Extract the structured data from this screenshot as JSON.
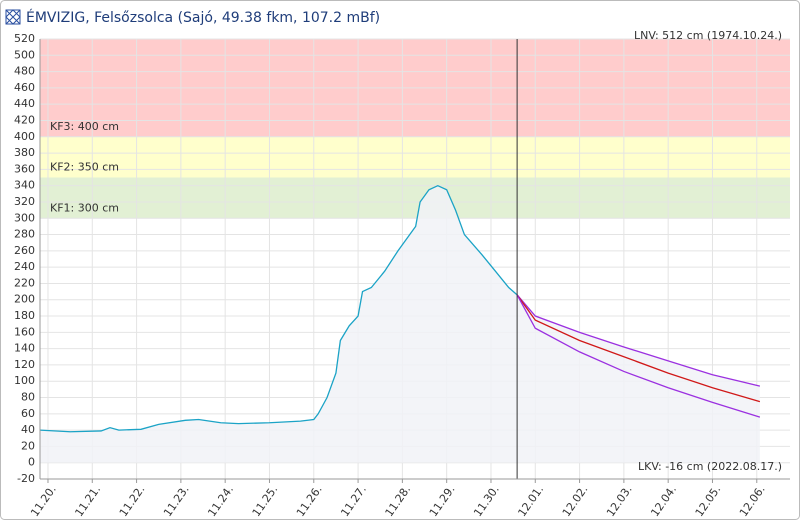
{
  "chart_data": {
    "type": "line",
    "title": "ÉMVIZIG, Felsőzsolca (Sajó, 49.38 fkm, 107.2 mBf)",
    "ylim": [
      -20,
      520
    ],
    "yticks": [
      -20,
      0,
      20,
      40,
      60,
      80,
      100,
      120,
      140,
      160,
      180,
      200,
      220,
      240,
      260,
      280,
      300,
      320,
      340,
      360,
      380,
      400,
      420,
      440,
      460,
      480,
      500,
      520
    ],
    "xlim": [
      -0.18,
      16.75
    ],
    "xticks": [
      {
        "value": 0,
        "label": "11.20."
      },
      {
        "value": 1,
        "label": "11.21."
      },
      {
        "value": 2,
        "label": "11.22."
      },
      {
        "value": 3,
        "label": "11.23."
      },
      {
        "value": 4,
        "label": "11.24."
      },
      {
        "value": 5,
        "label": "11.25."
      },
      {
        "value": 6,
        "label": "11.26."
      },
      {
        "value": 7,
        "label": "11.27."
      },
      {
        "value": 8,
        "label": "11.28."
      },
      {
        "value": 9,
        "label": "11.29."
      },
      {
        "value": 10,
        "label": "11.30."
      },
      {
        "value": 11,
        "label": "12.01."
      },
      {
        "value": 12,
        "label": "12.02."
      },
      {
        "value": 13,
        "label": "12.03."
      },
      {
        "value": 14,
        "label": "12.04."
      },
      {
        "value": 15,
        "label": "12.05."
      },
      {
        "value": 16,
        "label": "12.06."
      }
    ],
    "grid": true,
    "bands": [
      {
        "from": 400,
        "to": 520,
        "color": "#ffcccc",
        "label": "KF3: 400 cm"
      },
      {
        "from": 350,
        "to": 400,
        "color": "#ffffcc",
        "label": "KF2: 350 cm"
      },
      {
        "from": 300,
        "to": 350,
        "color": "#e2f0d4",
        "label": "KF1: 300 cm"
      }
    ],
    "now_x": 10.59,
    "top_note": "LNV: 512 cm (1974.10.24.)",
    "bottom_note": "LKV: -16 cm (2022.08.17.)",
    "fill_color": "#f1f2f7",
    "series": [
      {
        "color": "#1ba3c6",
        "x": [
          -0.18,
          0.5,
          1.2,
          1.4,
          1.6,
          2.1,
          2.5,
          3.1,
          3.4,
          3.9,
          4.3,
          5.0,
          5.7,
          6.0,
          6.1,
          6.3,
          6.5,
          6.6,
          6.8,
          7.0,
          7.1,
          7.3,
          7.6,
          7.9,
          8.3,
          8.4,
          8.6,
          8.8,
          9.0,
          9.2,
          9.4,
          9.8,
          10.1,
          10.4,
          10.59
        ],
        "values": [
          40,
          38,
          39,
          43,
          40,
          41,
          47,
          52,
          53,
          49,
          48,
          49,
          51,
          53,
          60,
          80,
          110,
          150,
          168,
          180,
          210,
          215,
          235,
          260,
          290,
          320,
          335,
          340,
          335,
          310,
          280,
          255,
          235,
          215,
          206
        ]
      },
      {
        "color": "#9b30e0",
        "x": [
          10.59,
          11,
          12,
          13,
          14,
          15,
          16.07
        ],
        "values": [
          206,
          180,
          160,
          142,
          125,
          108,
          94
        ]
      },
      {
        "color": "#d01818",
        "x": [
          10.59,
          11,
          12,
          13,
          14,
          15,
          16.07
        ],
        "values": [
          206,
          175,
          150,
          130,
          110,
          92,
          75
        ]
      },
      {
        "color": "#9b30e0",
        "x": [
          10.59,
          11,
          12,
          13,
          14,
          15,
          16.07
        ],
        "values": [
          206,
          165,
          136,
          112,
          92,
          74,
          56
        ]
      }
    ]
  }
}
